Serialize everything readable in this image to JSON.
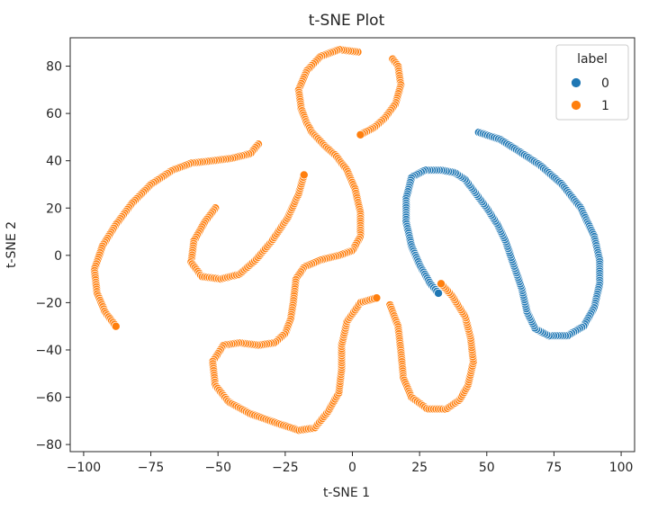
{
  "chart_data": {
    "type": "scatter",
    "title": "t-SNE Plot",
    "xlabel": "t-SNE 1",
    "ylabel": "t-SNE 2",
    "xlim": [
      -105,
      105
    ],
    "ylim": [
      -83,
      92
    ],
    "xticks": [
      -100,
      -75,
      -50,
      -25,
      0,
      25,
      50,
      75,
      100
    ],
    "yticks": [
      -80,
      -60,
      -40,
      -20,
      0,
      20,
      40,
      60,
      80
    ],
    "grid": false,
    "legend": {
      "title": "label",
      "placement": "top-right"
    },
    "series": [
      {
        "name": "0",
        "color": "#1f77b4",
        "curves": [
          [
            [
              47,
              52
            ],
            [
              55,
              49
            ],
            [
              62,
              44
            ],
            [
              70,
              38
            ],
            [
              78,
              30
            ],
            [
              85,
              20
            ],
            [
              90,
              8
            ],
            [
              92,
              -2
            ],
            [
              92,
              -12
            ],
            [
              90,
              -22
            ],
            [
              86,
              -30
            ],
            [
              80,
              -34
            ],
            [
              73,
              -34
            ],
            [
              68,
              -31
            ],
            [
              65,
              -24
            ],
            [
              63,
              -14
            ],
            [
              60,
              -4
            ],
            [
              57,
              6
            ],
            [
              54,
              13
            ],
            [
              50,
              20
            ],
            [
              46,
              26
            ],
            [
              42,
              32
            ],
            [
              38,
              35
            ],
            [
              33,
              36
            ],
            [
              27,
              36
            ],
            [
              22,
              33
            ],
            [
              20,
              24
            ],
            [
              20,
              14
            ],
            [
              22,
              4
            ],
            [
              25,
              -4
            ],
            [
              29,
              -12
            ],
            [
              32,
              -16
            ]
          ]
        ]
      },
      {
        "name": "1",
        "color": "#ff7f0e",
        "curves": [
          [
            [
              -35,
              47
            ],
            [
              -38,
              43
            ],
            [
              -45,
              41
            ],
            [
              -52,
              40
            ],
            [
              -60,
              39
            ],
            [
              -67,
              36
            ],
            [
              -75,
              30
            ],
            [
              -82,
              22
            ],
            [
              -88,
              13
            ],
            [
              -93,
              4
            ],
            [
              -96,
              -6
            ],
            [
              -95,
              -16
            ],
            [
              -92,
              -24
            ],
            [
              -88,
              -30
            ]
          ],
          [
            [
              -51,
              20
            ],
            [
              -55,
              14
            ],
            [
              -59,
              6
            ],
            [
              -60,
              -3
            ],
            [
              -56,
              -9
            ],
            [
              -49,
              -10
            ],
            [
              -42,
              -8
            ],
            [
              -36,
              -2
            ],
            [
              -30,
              6
            ],
            [
              -24,
              16
            ],
            [
              -20,
              26
            ],
            [
              -18,
              34
            ]
          ],
          [
            [
              2,
              86
            ],
            [
              -5,
              87
            ],
            [
              -12,
              84
            ],
            [
              -17,
              78
            ],
            [
              -20,
              70
            ],
            [
              -19,
              62
            ],
            [
              -17,
              56
            ],
            [
              -15,
              52
            ],
            [
              -10,
              46
            ],
            [
              -6,
              42
            ],
            [
              -2,
              36
            ],
            [
              1,
              28
            ],
            [
              3,
              18
            ],
            [
              3,
              8
            ],
            [
              0,
              2
            ],
            [
              -5,
              0
            ],
            [
              -12,
              -2
            ],
            [
              -18,
              -5
            ],
            [
              -21,
              -10
            ],
            [
              -22,
              -20
            ],
            [
              -23,
              -27
            ],
            [
              -25,
              -33
            ],
            [
              -29,
              -37
            ],
            [
              -35,
              -38
            ],
            [
              -42,
              -37
            ],
            [
              -48,
              -38
            ],
            [
              -52,
              -45
            ],
            [
              -51,
              -55
            ],
            [
              -46,
              -62
            ],
            [
              -38,
              -67
            ],
            [
              -28,
              -71
            ],
            [
              -20,
              -74
            ],
            [
              -14,
              -73
            ],
            [
              -9,
              -66
            ],
            [
              -5,
              -58
            ],
            [
              -4,
              -48
            ],
            [
              -4,
              -38
            ],
            [
              -2,
              -28
            ],
            [
              3,
              -20
            ],
            [
              9,
              -18
            ]
          ],
          [
            [
              15,
              83
            ],
            [
              17,
              80
            ],
            [
              18,
              72
            ],
            [
              16,
              64
            ],
            [
              12,
              58
            ],
            [
              8,
              54
            ],
            [
              3,
              51
            ]
          ],
          [
            [
              14,
              -21
            ],
            [
              17,
              -30
            ],
            [
              18,
              -40
            ],
            [
              19,
              -52
            ],
            [
              22,
              -60
            ],
            [
              28,
              -65
            ],
            [
              35,
              -65
            ],
            [
              40,
              -61
            ],
            [
              43,
              -55
            ],
            [
              45,
              -45
            ],
            [
              44,
              -35
            ],
            [
              42,
              -26
            ],
            [
              37,
              -17
            ],
            [
              33,
              -12
            ]
          ]
        ]
      }
    ]
  }
}
